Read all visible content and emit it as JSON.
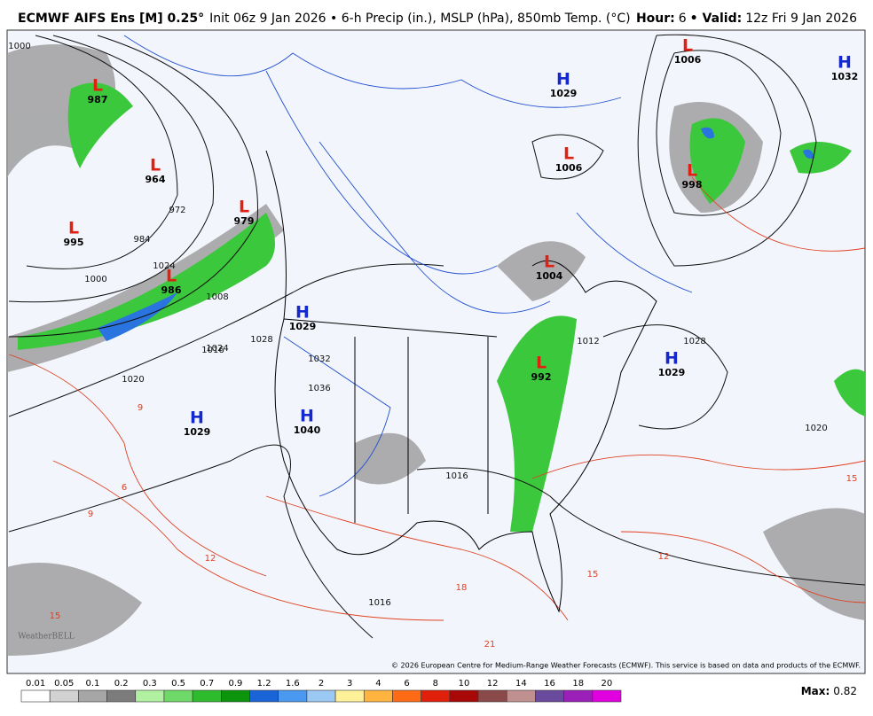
{
  "header": {
    "title": "ECMWF AIFS Ens [M] 0.25°",
    "subtitle": "Init 06z 9 Jan 2026 • 6-h Precip (in.), MSLP (hPa), 850mb Temp. (°C)",
    "hour_label": "Hour:",
    "hour": "6",
    "valid_label": "• Valid:",
    "valid": "12z Fri 9 Jan 2026"
  },
  "pressure_centers": [
    {
      "type": "L",
      "value": "987"
    },
    {
      "type": "L",
      "value": "964"
    },
    {
      "type": "L",
      "value": "995"
    },
    {
      "type": "L",
      "value": "979"
    },
    {
      "type": "L",
      "value": "986"
    },
    {
      "type": "H",
      "value": "1029"
    },
    {
      "type": "H",
      "value": "1029"
    },
    {
      "type": "H",
      "value": "1040"
    },
    {
      "type": "H",
      "value": "1029"
    },
    {
      "type": "L",
      "value": "1006"
    },
    {
      "type": "L",
      "value": "1006"
    },
    {
      "type": "H",
      "value": "1032"
    },
    {
      "type": "L",
      "value": "998"
    },
    {
      "type": "L",
      "value": "1004"
    },
    {
      "type": "L",
      "value": "992"
    },
    {
      "type": "H",
      "value": "1029"
    }
  ],
  "contour_labels": [
    "1000",
    "984",
    "972",
    "1000",
    "1008",
    "1016",
    "1024",
    "1028",
    "1020",
    "1032",
    "1036",
    "1016",
    "1024",
    "1028",
    "1012",
    "1020",
    "1016",
    "9",
    "6",
    "9",
    "12",
    "15",
    "18",
    "21",
    "15",
    "12",
    "15"
  ],
  "colorbar": {
    "labels": [
      "0.01",
      "0.05",
      "0.1",
      "0.2",
      "0.3",
      "0.5",
      "0.7",
      "0.9",
      "1.2",
      "1.6",
      "2",
      "3",
      "4",
      "6",
      "8",
      "10",
      "12",
      "14",
      "16",
      "18",
      "20"
    ],
    "colors": [
      "#ffffff",
      "#d2d2d2",
      "#a6a6a6",
      "#7c7c7c",
      "#b0f0a0",
      "#6ed868",
      "#2ebc2e",
      "#0c940c",
      "#1a64d8",
      "#4a98f0",
      "#9cc8f4",
      "#fff09a",
      "#ffb440",
      "#ff6a14",
      "#e0200a",
      "#a80808",
      "#8a4a4a",
      "#c09090",
      "#6a4a9c",
      "#9a20b8",
      "#e000e0"
    ]
  },
  "max_label": "Max:",
  "max_value": "0.82",
  "watermark": "WeatherBELL",
  "copyright": "© 2026 European Centre for Medium-Range Weather Forecasts (ECMWF). This service is based on data and products of the ECMWF."
}
